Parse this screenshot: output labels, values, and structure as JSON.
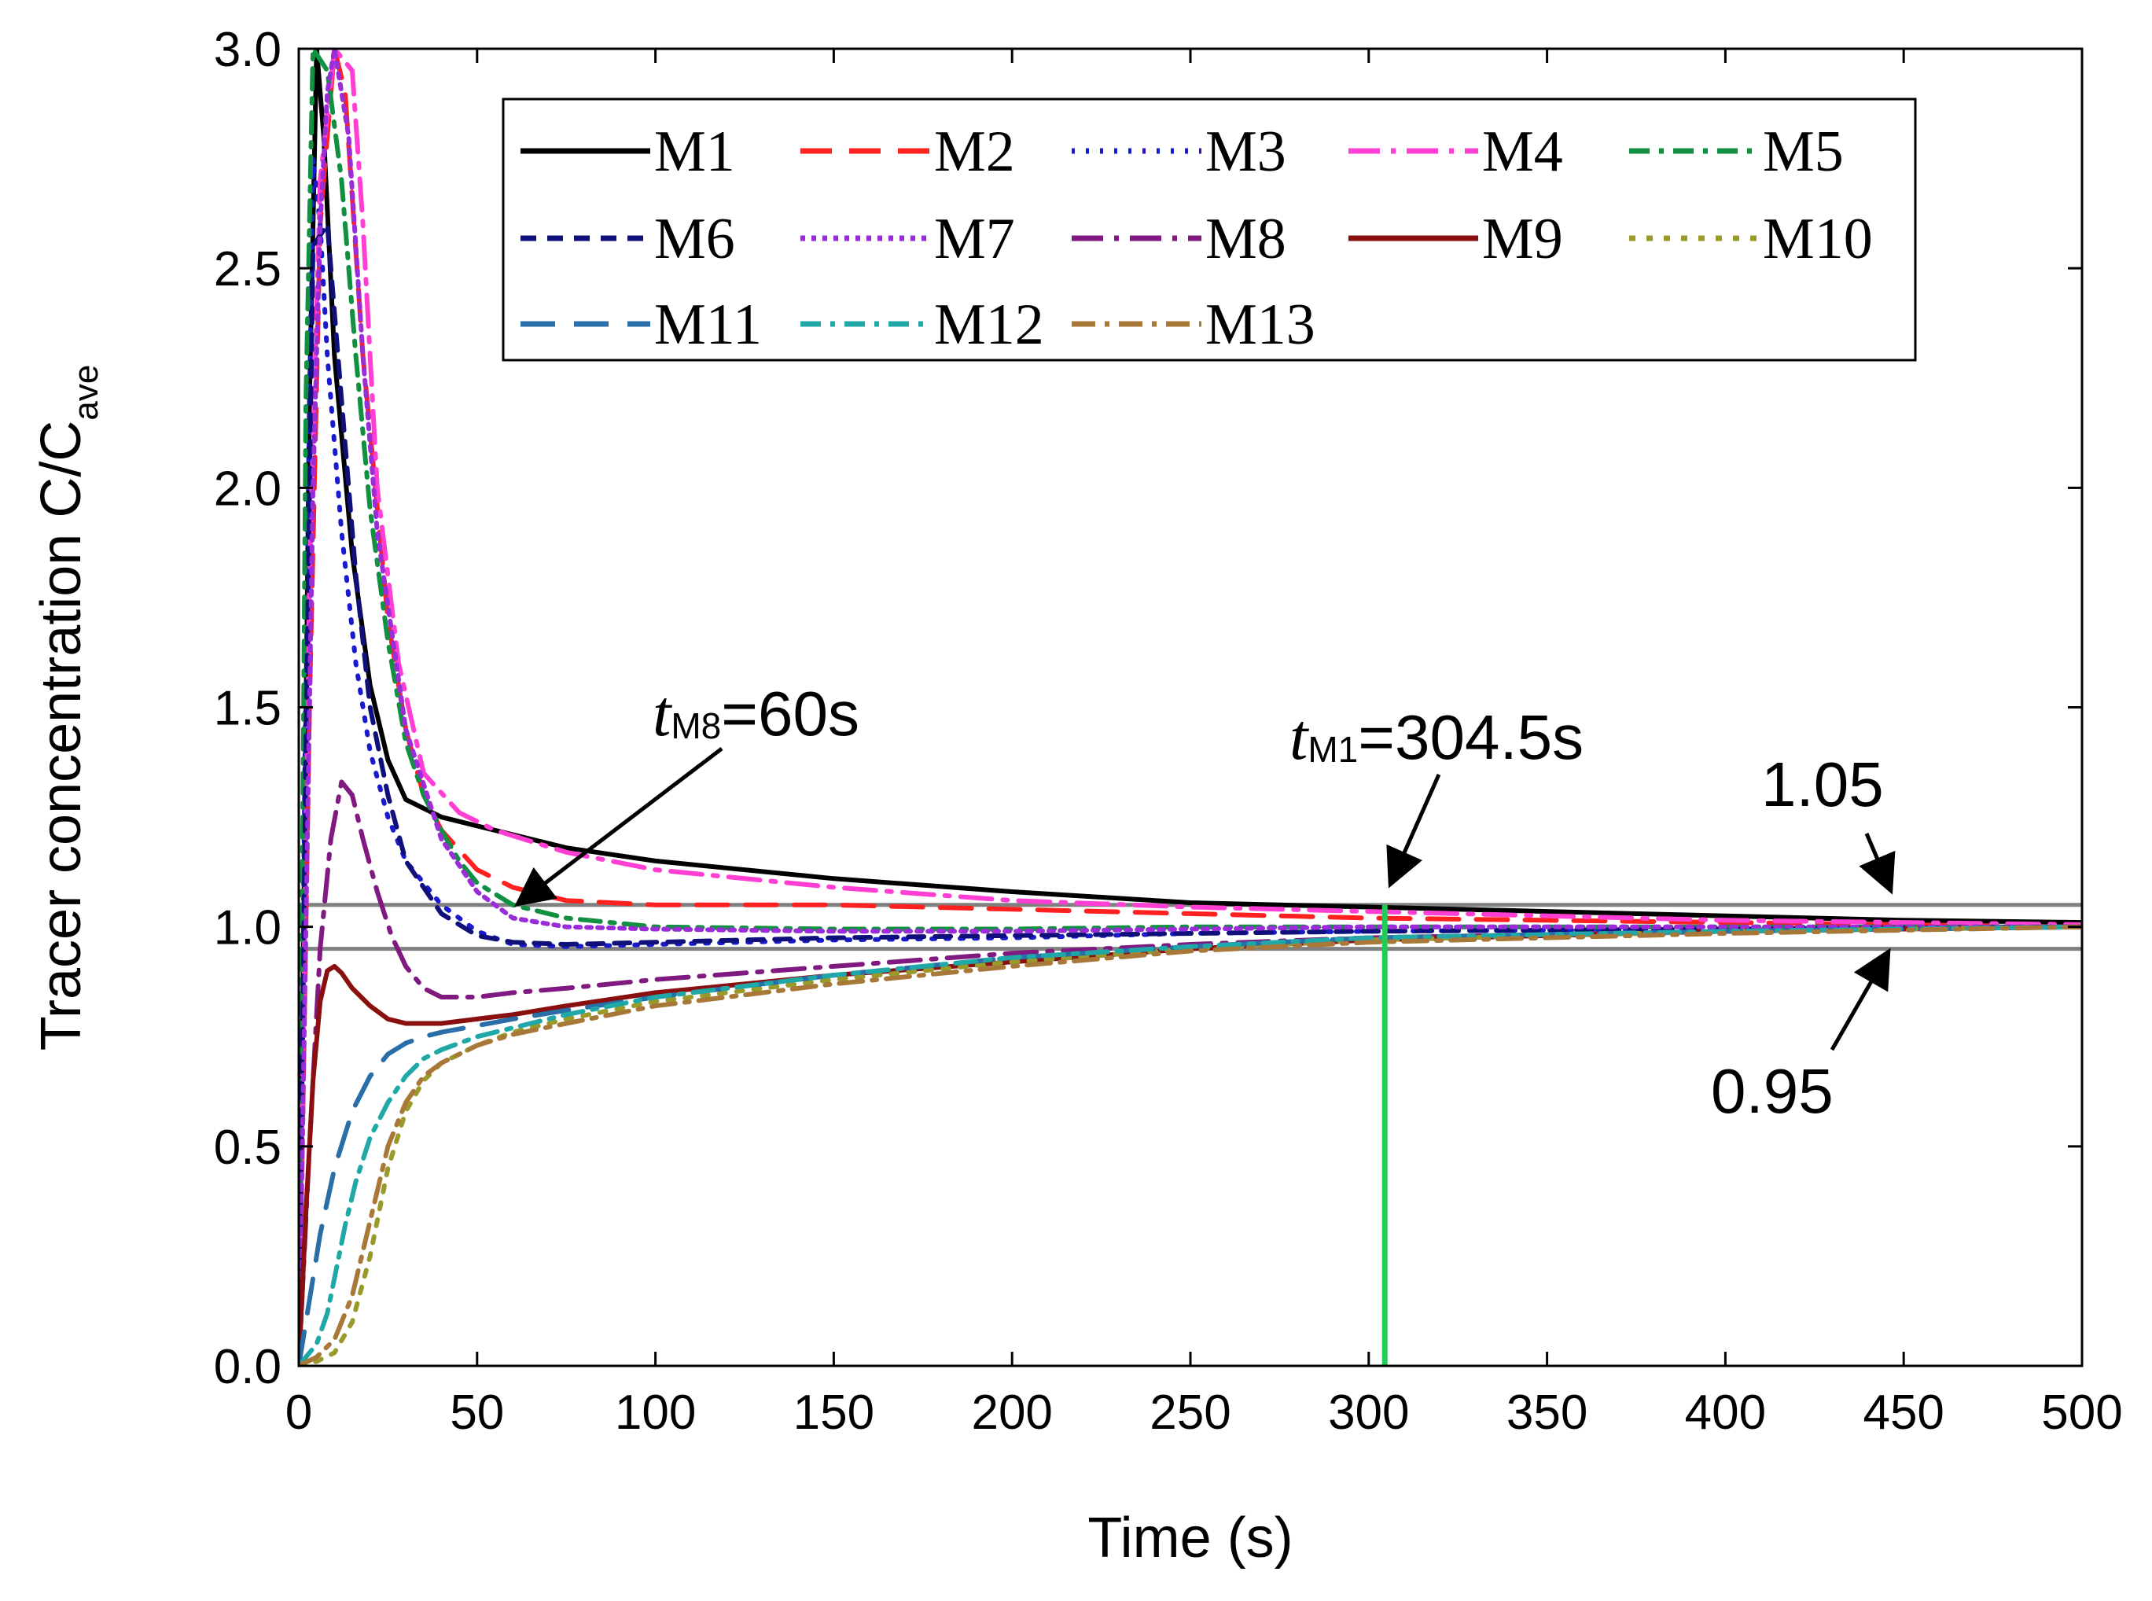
{
  "chart_data": {
    "type": "line",
    "xlabel": "Time (s)",
    "ylabel_main": "Tracer concentration C/C",
    "ylabel_sub": "ave",
    "xlim": [
      0,
      500
    ],
    "ylim": [
      0,
      3
    ],
    "xticks": [
      0,
      50,
      100,
      150,
      200,
      250,
      300,
      350,
      400,
      450,
      500
    ],
    "yticks": [
      0.0,
      0.5,
      1.0,
      1.5,
      2.0,
      2.5,
      3.0
    ],
    "ytick_labels": [
      "0.0",
      "0.5",
      "1.0",
      "1.5",
      "2.0",
      "2.5",
      "3.0"
    ],
    "series": [
      {
        "name": "M1",
        "color": "#000000",
        "dash": "none",
        "x": [
          0,
          3,
          5,
          7,
          10,
          15,
          20,
          25,
          30,
          40,
          50,
          75,
          100,
          150,
          200,
          250,
          300,
          350,
          400,
          450,
          500
        ],
        "y": [
          0,
          2.2,
          3.0,
          2.8,
          2.3,
          1.85,
          1.55,
          1.38,
          1.29,
          1.25,
          1.23,
          1.18,
          1.15,
          1.11,
          1.08,
          1.055,
          1.045,
          1.035,
          1.025,
          1.015,
          1.01
        ]
      },
      {
        "name": "M2",
        "color": "#ff2020",
        "dash": "40,22",
        "x": [
          0,
          3,
          6,
          10,
          13,
          18,
          25,
          30,
          35,
          40,
          50,
          60,
          75,
          100,
          150,
          200,
          250,
          300,
          350,
          400,
          450,
          500
        ],
        "y": [
          0,
          1.5,
          2.6,
          3.0,
          2.9,
          2.3,
          1.7,
          1.45,
          1.3,
          1.22,
          1.13,
          1.09,
          1.06,
          1.05,
          1.05,
          1.04,
          1.03,
          1.02,
          1.015,
          1.01,
          1.005,
          1.0
        ]
      },
      {
        "name": "M3",
        "color": "#1a1acd",
        "dash": "4,14",
        "x": [
          0,
          2,
          4,
          6,
          8,
          12,
          16,
          20,
          25,
          30,
          40,
          50,
          60,
          75,
          100,
          150,
          200,
          250,
          300,
          400,
          500
        ],
        "y": [
          0,
          1.6,
          2.75,
          2.6,
          2.3,
          1.9,
          1.6,
          1.4,
          1.25,
          1.15,
          1.05,
          0.99,
          0.96,
          0.955,
          0.96,
          0.97,
          0.975,
          0.985,
          0.99,
          0.995,
          1.0
        ]
      },
      {
        "name": "M4",
        "color": "#ff3fd4",
        "dash": "40,14,6,14",
        "x": [
          0,
          3,
          6,
          10,
          15,
          18,
          22,
          28,
          35,
          45,
          55,
          75,
          100,
          150,
          200,
          250,
          300,
          350,
          400,
          450,
          500
        ],
        "y": [
          0,
          1.8,
          2.7,
          3.0,
          2.95,
          2.6,
          2.0,
          1.6,
          1.35,
          1.26,
          1.22,
          1.17,
          1.13,
          1.09,
          1.06,
          1.045,
          1.035,
          1.025,
          1.015,
          1.01,
          1.005
        ]
      },
      {
        "name": "M5",
        "color": "#109040",
        "dash": "26,12,6,12",
        "x": [
          0,
          2,
          4,
          8,
          12,
          16,
          20,
          25,
          30,
          35,
          40,
          45,
          50,
          60,
          75,
          100,
          150,
          200,
          250,
          300,
          400,
          500
        ],
        "y": [
          0,
          2.2,
          3.0,
          2.95,
          2.7,
          2.3,
          1.95,
          1.65,
          1.42,
          1.3,
          1.22,
          1.15,
          1.1,
          1.05,
          1.02,
          1.0,
          0.995,
          0.995,
          1.0,
          1.0,
          1.0,
          1.0
        ]
      },
      {
        "name": "M6",
        "color": "#10107a",
        "dash": "20,14",
        "x": [
          0,
          2,
          4,
          8,
          12,
          16,
          20,
          25,
          30,
          40,
          50,
          60,
          75,
          100,
          150,
          200,
          250,
          300,
          400,
          500
        ],
        "y": [
          0,
          1.4,
          2.55,
          2.6,
          2.2,
          1.8,
          1.5,
          1.3,
          1.15,
          1.03,
          0.98,
          0.965,
          0.96,
          0.965,
          0.975,
          0.98,
          0.985,
          0.99,
          0.995,
          1.0
        ]
      },
      {
        "name": "M7",
        "color": "#9a2dd8",
        "dash": "6,8",
        "x": [
          0,
          2,
          4,
          6,
          8,
          10,
          14,
          18,
          22,
          30,
          40,
          50,
          60,
          75,
          100,
          150,
          200,
          250,
          300,
          400,
          500
        ],
        "y": [
          0,
          1.0,
          2.0,
          2.6,
          2.9,
          3.0,
          2.8,
          2.3,
          1.9,
          1.45,
          1.2,
          1.08,
          1.02,
          1.0,
          0.995,
          0.99,
          0.99,
          0.995,
          1.0,
          1.0,
          1.0
        ]
      },
      {
        "name": "M8",
        "color": "#801a80",
        "dash": "40,14,6,14",
        "x": [
          0,
          3,
          6,
          9,
          12,
          15,
          18,
          22,
          26,
          30,
          35,
          40,
          50,
          60,
          75,
          100,
          150,
          200,
          250,
          300,
          400,
          500
        ],
        "y": [
          0,
          0.5,
          0.95,
          1.2,
          1.33,
          1.3,
          1.2,
          1.08,
          0.98,
          0.91,
          0.86,
          0.84,
          0.84,
          0.85,
          0.86,
          0.88,
          0.91,
          0.94,
          0.96,
          0.975,
          0.99,
          1.0
        ]
      },
      {
        "name": "M9",
        "color": "#8a0f0f",
        "dash": "none",
        "x": [
          0,
          2,
          4,
          6,
          8,
          10,
          12,
          15,
          20,
          25,
          30,
          40,
          50,
          60,
          75,
          100,
          150,
          200,
          250,
          300,
          400,
          500
        ],
        "y": [
          0,
          0.35,
          0.65,
          0.83,
          0.9,
          0.91,
          0.895,
          0.86,
          0.82,
          0.79,
          0.78,
          0.78,
          0.79,
          0.8,
          0.82,
          0.85,
          0.89,
          0.92,
          0.95,
          0.97,
          0.99,
          1.0
        ]
      },
      {
        "name": "M10",
        "color": "#9a9a2a",
        "dash": "8,14",
        "x": [
          0,
          5,
          10,
          15,
          20,
          25,
          30,
          35,
          40,
          50,
          60,
          75,
          100,
          150,
          200,
          250,
          300,
          400,
          500
        ],
        "y": [
          0,
          0.01,
          0.03,
          0.1,
          0.25,
          0.45,
          0.58,
          0.65,
          0.69,
          0.73,
          0.76,
          0.79,
          0.83,
          0.88,
          0.92,
          0.95,
          0.97,
          0.99,
          1.0
        ]
      },
      {
        "name": "M11",
        "color": "#2a6ea8",
        "dash": "44,24",
        "x": [
          0,
          3,
          6,
          10,
          15,
          20,
          25,
          30,
          35,
          40,
          50,
          60,
          75,
          100,
          150,
          200,
          250,
          300,
          400,
          500
        ],
        "y": [
          0,
          0.15,
          0.3,
          0.45,
          0.58,
          0.66,
          0.71,
          0.735,
          0.75,
          0.76,
          0.775,
          0.79,
          0.81,
          0.84,
          0.89,
          0.93,
          0.955,
          0.975,
          0.99,
          1.0
        ]
      },
      {
        "name": "M12",
        "color": "#20a8a8",
        "dash": "26,12,6,12",
        "x": [
          0,
          5,
          8,
          10,
          13,
          16,
          20,
          25,
          30,
          35,
          40,
          50,
          60,
          75,
          100,
          150,
          200,
          250,
          300,
          400,
          500
        ],
        "y": [
          0,
          0.05,
          0.12,
          0.2,
          0.32,
          0.42,
          0.52,
          0.6,
          0.66,
          0.7,
          0.72,
          0.75,
          0.77,
          0.8,
          0.84,
          0.89,
          0.93,
          0.955,
          0.975,
          0.99,
          1.0
        ]
      },
      {
        "name": "M13",
        "color": "#a87838",
        "dash": "30,12,6,12",
        "x": [
          0,
          5,
          10,
          15,
          20,
          25,
          30,
          35,
          40,
          50,
          60,
          75,
          100,
          150,
          200,
          250,
          300,
          400,
          500
        ],
        "y": [
          0,
          0.02,
          0.06,
          0.16,
          0.33,
          0.5,
          0.6,
          0.66,
          0.69,
          0.73,
          0.755,
          0.78,
          0.82,
          0.87,
          0.91,
          0.945,
          0.965,
          0.985,
          1.0
        ]
      }
    ],
    "reference_lines": [
      {
        "y": 1.05,
        "label": "1.05",
        "color": "#808080"
      },
      {
        "y": 0.95,
        "label": "0.95",
        "color": "#808080"
      }
    ],
    "marker_line": {
      "x": 304.5,
      "color": "#22cc55"
    },
    "annotations": [
      {
        "id": "tm8",
        "t": "t",
        "sub": "M8",
        "text": "=60s",
        "point": [
          62,
          1.0
        ]
      },
      {
        "id": "tm1",
        "t": "t",
        "sub": "M1",
        "text": "=304.5s",
        "point": [
          304.5,
          1.05
        ]
      }
    ]
  }
}
